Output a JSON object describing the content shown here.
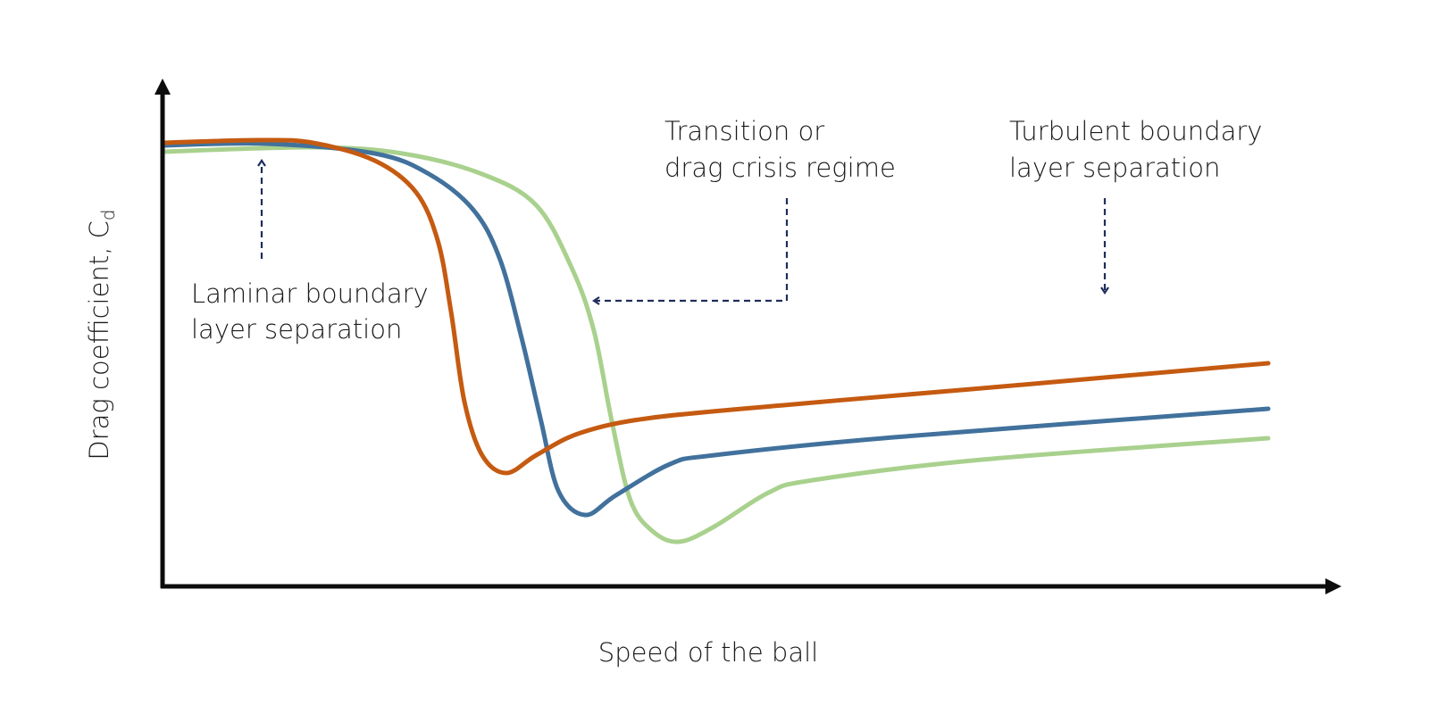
{
  "chart_data": {
    "type": "line",
    "title": "",
    "xlabel": "Speed of the ball",
    "ylabel": "Drag coefficient, C",
    "ylabel_subscript": "d",
    "xlim": [
      0,
      100
    ],
    "ylim": [
      0,
      100
    ],
    "grid": false,
    "ticks": false,
    "series": [
      {
        "color": "#C55A11",
        "x": [
          0,
          8.7,
          13.6,
          19.2,
          22.9,
          24.9,
          26.1,
          27.3,
          28.9,
          31.1,
          33.8,
          37.8,
          44.3,
          58.0,
          74.1,
          100
        ],
        "y": [
          99.4,
          100,
          99.4,
          95.4,
          88.4,
          77.4,
          61.4,
          41.4,
          29.4,
          25.4,
          29.4,
          34.4,
          37.8,
          41,
          44.4,
          50
        ]
      },
      {
        "color": "#41719C",
        "x": [
          0,
          9.5,
          19.2,
          24.1,
          28.1,
          30.5,
          32.5,
          34.2,
          35.8,
          38.2,
          41.0,
          45.9,
          49.9,
          66.1,
          100
        ],
        "y": [
          98.8,
          99.2,
          97,
          92.4,
          84.4,
          73.4,
          55.4,
          37.4,
          21.4,
          16,
          20.4,
          27.4,
          29.4,
          33.4,
          39.8
        ]
      },
      {
        "color": "#A9D18E",
        "x": [
          0,
          13.6,
          21.7,
          28.9,
          33.8,
          37.0,
          39.0,
          40.6,
          42.3,
          44.3,
          46.7,
          49.9,
          54.8,
          58.8,
          74.1,
          100
        ],
        "y": [
          97.4,
          98.4,
          97,
          92.4,
          85.4,
          71.4,
          57.4,
          37.4,
          19.4,
          12.4,
          10,
          13.4,
          21,
          23.8,
          28.4,
          33.2
        ]
      }
    ],
    "annotations": {
      "laminar": [
        "Laminar boundary",
        "layer separation"
      ],
      "transition": [
        "Transition or",
        "drag crisis regime"
      ],
      "turbulent": [
        "Turbulent boundary",
        "layer separation"
      ]
    },
    "annotation_color": "#1F2D5C"
  }
}
